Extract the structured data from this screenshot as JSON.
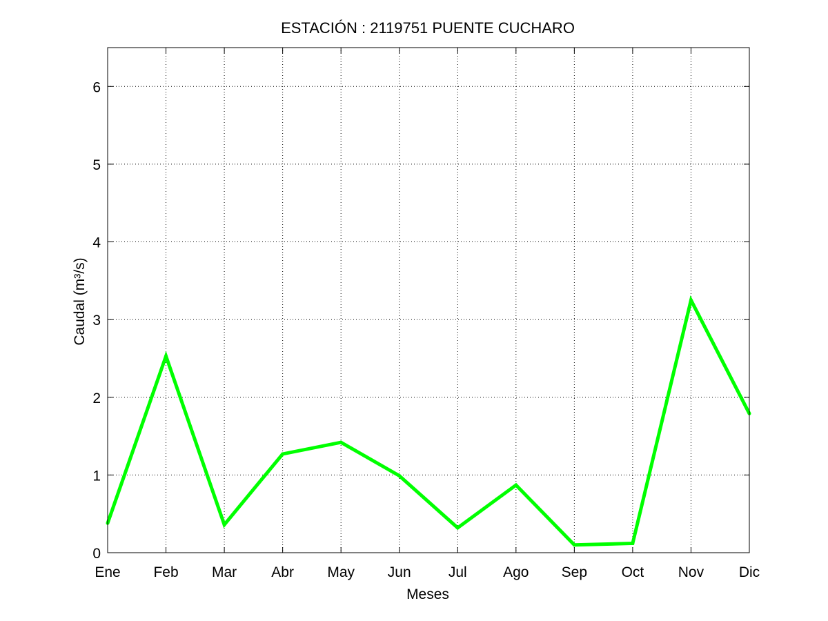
{
  "chart_data": {
    "type": "line",
    "title": "ESTACIÓN :  2119751  PUENTE CUCHARO",
    "xlabel": "Meses",
    "ylabel": "Caudal (m³/s)",
    "categories": [
      "Ene",
      "Feb",
      "Mar",
      "Abr",
      "May",
      "Jun",
      "Jul",
      "Ago",
      "Sep",
      "Oct",
      "Nov",
      "Dic"
    ],
    "series": [
      {
        "values": [
          0.38,
          2.53,
          0.36,
          1.27,
          1.42,
          0.99,
          0.32,
          0.87,
          0.1,
          0.12,
          3.25,
          1.79
        ],
        "color": "#00ff00"
      }
    ],
    "ylim": [
      0,
      6.5
    ],
    "yticks": [
      0,
      1,
      2,
      3,
      4,
      5,
      6
    ],
    "grid": true,
    "grid_style": "dotted"
  }
}
